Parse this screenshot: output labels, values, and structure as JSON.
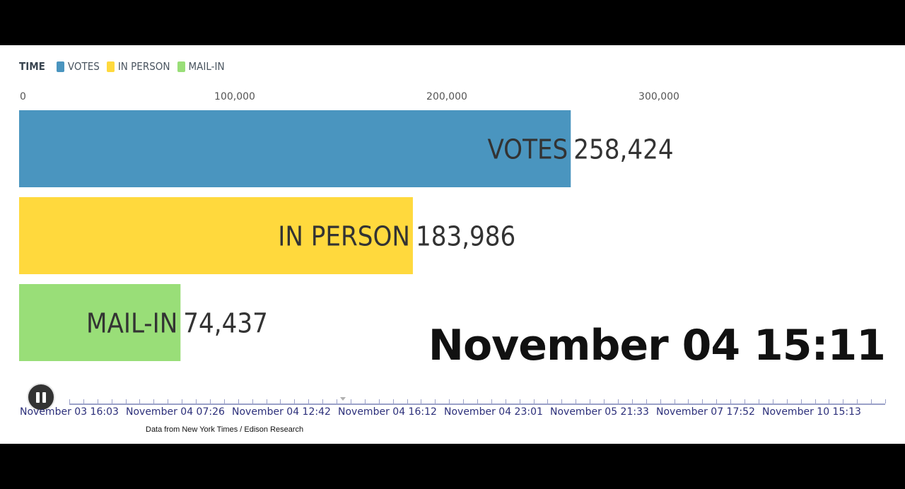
{
  "legend": {
    "title": "TIME",
    "items": [
      {
        "label": "VOTES",
        "color": "#4a95bf"
      },
      {
        "label": "IN PERSON",
        "color": "#ffd93d"
      },
      {
        "label": "MAIL-IN",
        "color": "#99de78"
      }
    ]
  },
  "chart_data": {
    "type": "bar",
    "orientation": "horizontal",
    "categories": [
      "VOTES",
      "IN PERSON",
      "MAIL-IN"
    ],
    "values": [
      258424,
      183986,
      74437
    ],
    "value_labels": [
      "258,424",
      "183,986",
      "74,437"
    ],
    "colors": [
      "#4a95bf",
      "#ffd93d",
      "#99de78"
    ],
    "xlim": [
      0,
      300000
    ],
    "x_ticks": [
      0,
      100000,
      200000,
      300000
    ],
    "x_tick_labels": [
      "0",
      "100,000",
      "200,000",
      "300,000"
    ],
    "axis_position": "top",
    "grid": false
  },
  "clock": "November 04 15:11",
  "timeline": {
    "labels": [
      "November 03 16:03",
      "November 04 07:26",
      "November 04 12:42",
      "November 04 16:12",
      "November 04 23:01",
      "November 05 21:33",
      "November 07 17:52",
      "November 10 15:13"
    ]
  },
  "controls": {
    "pause_icon": "pause-icon"
  },
  "source": "Data from New York Times / Edison Research"
}
